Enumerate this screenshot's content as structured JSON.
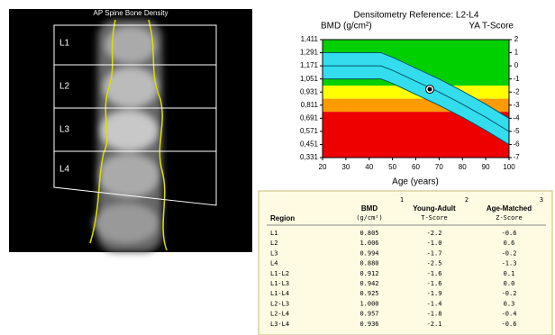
{
  "image_panel": {
    "title": "AP Spine Bone Density",
    "regions": [
      "L1",
      "L2",
      "L3",
      "L4"
    ]
  },
  "chart_data": {
    "type": "line",
    "title": "Densitometry Reference: L2-L4",
    "y_label": "BMD (g/cm²)",
    "y2_label": "YA T-Score",
    "x_label": "Age (years)",
    "xlim": [
      20,
      100
    ],
    "xticks": [
      20,
      30,
      40,
      50,
      60,
      70,
      80,
      90,
      100
    ],
    "ylim": [
      0.331,
      1.411
    ],
    "yticks": [
      {
        "value": 1.411,
        "label": "1,411"
      },
      {
        "value": 1.291,
        "label": "1,291"
      },
      {
        "value": 1.171,
        "label": "1,171"
      },
      {
        "value": 1.051,
        "label": "1,051"
      },
      {
        "value": 0.931,
        "label": "0,931"
      },
      {
        "value": 0.811,
        "label": "0,811"
      },
      {
        "value": 0.691,
        "label": "0,691"
      },
      {
        "value": 0.571,
        "label": "0,571"
      },
      {
        "value": 0.451,
        "label": "0,451"
      },
      {
        "value": 0.331,
        "label": "0,331"
      }
    ],
    "y2lim": [
      -7,
      2
    ],
    "y2ticks": [
      2,
      1,
      0,
      -1,
      -2,
      -3,
      -4,
      -5,
      -6,
      -7
    ],
    "bands": [
      {
        "from": 0.99,
        "to": 1.411,
        "color": "#00d000"
      },
      {
        "from": 0.87,
        "to": 0.99,
        "color": "#ffff00"
      },
      {
        "from": 0.75,
        "to": 0.87,
        "color": "#ff9a00"
      },
      {
        "from": 0.331,
        "to": 0.75,
        "color": "#ee0000"
      }
    ],
    "x": [
      20,
      30,
      40,
      45,
      50,
      60,
      70,
      80,
      90,
      100
    ],
    "area_color": "#33ddee",
    "series": [
      {
        "color": "#005566",
        "values": [
          1.291,
          1.291,
          1.291,
          1.291,
          1.25,
          1.15,
          1.05,
          0.94,
          0.82,
          0.69
        ]
      },
      {
        "color": "#005566",
        "values": [
          1.171,
          1.171,
          1.171,
          1.171,
          1.13,
          1.03,
          0.93,
          0.82,
          0.7,
          0.57
        ]
      },
      {
        "color": "#005566",
        "values": [
          1.051,
          1.051,
          1.051,
          1.051,
          1.01,
          0.91,
          0.81,
          0.7,
          0.58,
          0.45
        ]
      }
    ],
    "patient": {
      "x": 66,
      "y": 0.957
    }
  },
  "table": {
    "columns": [
      {
        "title": "Region"
      },
      {
        "title": "BMD",
        "unit": "(g/cm²)",
        "note": "1"
      },
      {
        "title": "Young-Adult",
        "unit": "T-Score",
        "note": "2"
      },
      {
        "title": "Age-Matched",
        "unit": "Z-Score",
        "note": "3"
      }
    ],
    "rows": [
      [
        "L1",
        "0.805",
        "-2.2",
        "-0.6"
      ],
      [
        "L2",
        "1.006",
        "-1.0",
        "0.6"
      ],
      [
        "L3",
        "0.994",
        "-1.7",
        "-0.2"
      ],
      [
        "L4",
        "0.880",
        "-2.5",
        "-1.3"
      ],
      [
        "L1-L2",
        "0.912",
        "-1.6",
        "0.1"
      ],
      [
        "L1-L3",
        "0.942",
        "-1.6",
        "0.0"
      ],
      [
        "L1-L4",
        "0.925",
        "-1.9",
        "-0.2"
      ],
      [
        "L2-L3",
        "1.000",
        "-1.4",
        "0.3"
      ],
      [
        "L2-L4",
        "0.957",
        "-1.8",
        "-0.4"
      ],
      [
        "L3-L4",
        "0.936",
        "-2.1",
        "-0.6"
      ]
    ]
  }
}
